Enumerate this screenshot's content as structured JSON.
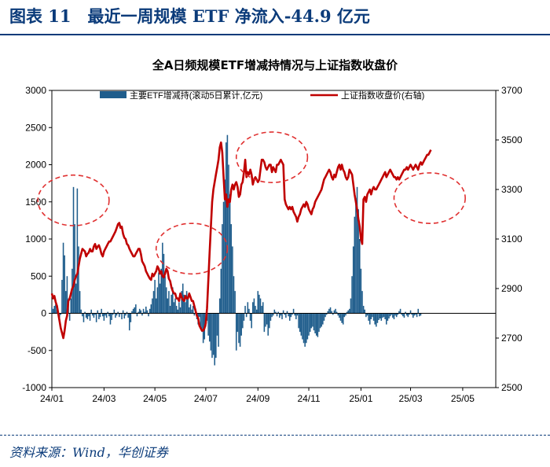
{
  "header": {
    "title": "图表 11　最近一周规模 ETF 净流入-44.9 亿元"
  },
  "source": "资料来源：Wind，华创证券",
  "colors": {
    "bar": "#1f5d8c",
    "line": "#c00000",
    "circle": "#e03030",
    "brand": "#0b3b7a"
  },
  "chart_data": {
    "type": "bar+line",
    "title": "全A日频规模ETF增减持情况与上证指数收盘价",
    "legend": {
      "position": "top",
      "items": [
        "主要ETF增减持(滚动5日累计,亿元)",
        "上证指数收盘价(右轴)"
      ]
    },
    "y_left": {
      "min": -1000,
      "max": 3000,
      "ticks": [
        -1000,
        -500,
        0,
        500,
        1000,
        1500,
        2000,
        2500,
        3000
      ]
    },
    "y_right": {
      "min": 2500,
      "max": 3700,
      "ticks": [
        2500,
        2700,
        2900,
        3100,
        3300,
        3500,
        3700
      ]
    },
    "x_ticks": [
      "24/01",
      "24/03",
      "24/05",
      "24/07",
      "24/09",
      "24/11",
      "25/01",
      "25/03",
      "25/05"
    ],
    "x_tick_pos": [
      0,
      41,
      81,
      121,
      162,
      202,
      243,
      282,
      323
    ],
    "x_range": [
      0,
      349
    ],
    "series": [
      {
        "name": "主要ETF增减持(滚动5日累计,亿元)",
        "type": "bar",
        "values": [
          80,
          60,
          100,
          120,
          50,
          30,
          -60,
          -20,
          450,
          950,
          780,
          300,
          500,
          200,
          -100,
          200,
          600,
          1700,
          1200,
          400,
          1680,
          900,
          300,
          50,
          -40,
          -120,
          20,
          -60,
          -80,
          -40,
          -100,
          50,
          -30,
          -60,
          -20,
          -120,
          40,
          -80,
          -50,
          60,
          -40,
          -100,
          -30,
          -60,
          20,
          -40,
          -150,
          -90,
          -20,
          50,
          -60,
          -30,
          20,
          -50,
          -10,
          -80,
          40,
          -70,
          -30,
          20,
          -60,
          -230,
          -120,
          30,
          60,
          80,
          120,
          -40,
          20,
          60,
          40,
          -30,
          60,
          20,
          90,
          40,
          -40,
          60,
          120,
          200,
          300,
          450,
          200,
          350,
          550,
          400,
          600,
          950,
          800,
          500,
          350,
          200,
          300,
          100,
          250,
          350,
          150,
          200,
          100,
          50,
          150,
          80,
          300,
          400,
          250,
          150,
          300,
          200,
          80,
          120,
          50,
          100,
          -30,
          60,
          -80,
          -150,
          -50,
          -200,
          -250,
          -400,
          -350,
          -180,
          -100,
          -300,
          -380,
          -500,
          -600,
          -560,
          -700,
          -600,
          -300,
          -450,
          200,
          600,
          1200,
          1500,
          1800,
          2300,
          2400,
          2000,
          1600,
          1200,
          900,
          500,
          300,
          -500,
          -250,
          -400,
          -450,
          -300,
          -200,
          -100,
          100,
          -50,
          150,
          60,
          -100,
          -200,
          150,
          200,
          100,
          50,
          300,
          250,
          200,
          100,
          150,
          -250,
          -180,
          -150,
          -300,
          -200,
          -100,
          -50,
          -30,
          50,
          20,
          -40,
          20,
          -60,
          -30,
          -80,
          40,
          -20,
          -60,
          30,
          -40,
          -100,
          -50,
          -20,
          60,
          -30,
          -80,
          -30,
          -200,
          -250,
          -300,
          -350,
          -400,
          -450,
          -400,
          -350,
          -300,
          -250,
          -200,
          -180,
          -230,
          -270,
          -300,
          -320,
          -250,
          -200,
          -180,
          -150,
          -100,
          -50,
          -20,
          30,
          60,
          80,
          30,
          -20,
          40,
          60,
          20,
          -30,
          -60,
          -100,
          -130,
          -150,
          -50,
          -30,
          20,
          40,
          60,
          200,
          500,
          900,
          1300,
          1550,
          1700,
          1400,
          1000,
          600,
          300,
          100,
          50,
          -50,
          -30,
          -100,
          -150,
          -80,
          -50,
          -100,
          -150,
          -180,
          -130,
          -90,
          -70,
          -100,
          -60,
          -50,
          -80,
          -150,
          -100,
          -70,
          -40,
          -20,
          -60,
          -80,
          -30,
          -50,
          -20,
          30,
          60,
          -20,
          -40,
          -60,
          20,
          -30,
          -50,
          -20,
          40,
          -20,
          -60,
          -30,
          -20,
          -50,
          60,
          -40,
          -30
        ]
      },
      {
        "name": "上证指数收盘价(右轴)",
        "type": "line",
        "values": [
          2880,
          2860,
          2870,
          2845,
          2830,
          2800,
          2770,
          2740,
          2720,
          2700,
          2730,
          2770,
          2790,
          2850,
          2860,
          2880,
          2900,
          2910,
          2935,
          2950,
          2960,
          2990,
          3020,
          3040,
          3060,
          3055,
          3050,
          3030,
          3040,
          3045,
          3060,
          3050,
          3050,
          3070,
          3080,
          3060,
          3070,
          3075,
          3060,
          3040,
          3030,
          3050,
          3060,
          3070,
          3080,
          3090,
          3090,
          3100,
          3110,
          3120,
          3130,
          3145,
          3160,
          3165,
          3145,
          3150,
          3120,
          3105,
          3100,
          3080,
          3075,
          3060,
          3050,
          3040,
          3030,
          3030,
          3040,
          3050,
          3060,
          3060,
          3040,
          3010,
          3000,
          2990,
          2970,
          2960,
          2950,
          2940,
          2935,
          2960,
          2950,
          2960,
          2970,
          2990,
          2980,
          2960,
          2970,
          2950,
          2945,
          2960,
          2980,
          2970,
          2940,
          2930,
          2905,
          2890,
          2880,
          2880,
          2860,
          2860,
          2850,
          2880,
          2865,
          2855,
          2850,
          2870,
          2860,
          2860,
          2880,
          2865,
          2850,
          2850,
          2830,
          2810,
          2790,
          2780,
          2750,
          2740,
          2730,
          2730,
          2740,
          2760,
          2820,
          2930,
          3040,
          3150,
          3250,
          3300,
          3330,
          3360,
          3390,
          3420,
          3470,
          3490,
          3450,
          3350,
          3260,
          3280,
          3230,
          3260,
          3250,
          3300,
          3320,
          3300,
          3320,
          3330,
          3310,
          3270,
          3280,
          3320,
          3330,
          3370,
          3420,
          3350,
          3370,
          3360,
          3380,
          3360,
          3320,
          3340,
          3350,
          3340,
          3330,
          3340,
          3380,
          3420,
          3420,
          3410,
          3390,
          3380,
          3390,
          3400,
          3400,
          3370,
          3390,
          3380,
          3370,
          3400,
          3400,
          3410,
          3420,
          3410,
          3400,
          3260,
          3240,
          3230,
          3220,
          3230,
          3220,
          3230,
          3210,
          3200,
          3190,
          3170,
          3190,
          3200,
          3220,
          3230,
          3240,
          3230,
          3250,
          3240,
          3220,
          3210,
          3200,
          3220,
          3230,
          3250,
          3260,
          3270,
          3280,
          3290,
          3300,
          3320,
          3340,
          3350,
          3360,
          3370,
          3380,
          3370,
          3350,
          3340,
          3360,
          3350,
          3370,
          3390,
          3400,
          3380,
          3400,
          3380,
          3370,
          3350,
          3340,
          3350,
          3380,
          3370,
          3360,
          3320,
          3280,
          3250,
          3220,
          3180,
          3150,
          3100,
          3080,
          3260,
          3270,
          3250,
          3280,
          3290,
          3300,
          3280,
          3300,
          3310,
          3300,
          3300,
          3310,
          3320,
          3330,
          3340,
          3350,
          3360,
          3370,
          3350,
          3360,
          3370,
          3380,
          3370,
          3360,
          3350,
          3350,
          3340,
          3350,
          3340,
          3350,
          3360,
          3370,
          3380,
          3380,
          3390,
          3380,
          3390,
          3400,
          3390,
          3380,
          3390,
          3400,
          3390,
          3380,
          3400,
          3410,
          3400,
          3410,
          3420,
          3430,
          3440,
          3440,
          3450,
          3460
        ]
      }
    ],
    "annotations": [
      {
        "type": "circle",
        "x": 17,
        "y": 1520,
        "rx": 10,
        "ry": 340
      },
      {
        "type": "circle",
        "x": 110,
        "y": 870,
        "rx": 10,
        "ry": 340
      },
      {
        "type": "circle",
        "x": 173,
        "y": 2100,
        "rx": 10,
        "ry": 340
      },
      {
        "type": "circle",
        "x": 297,
        "y": 1550,
        "rx": 10,
        "ry": 340
      }
    ]
  }
}
